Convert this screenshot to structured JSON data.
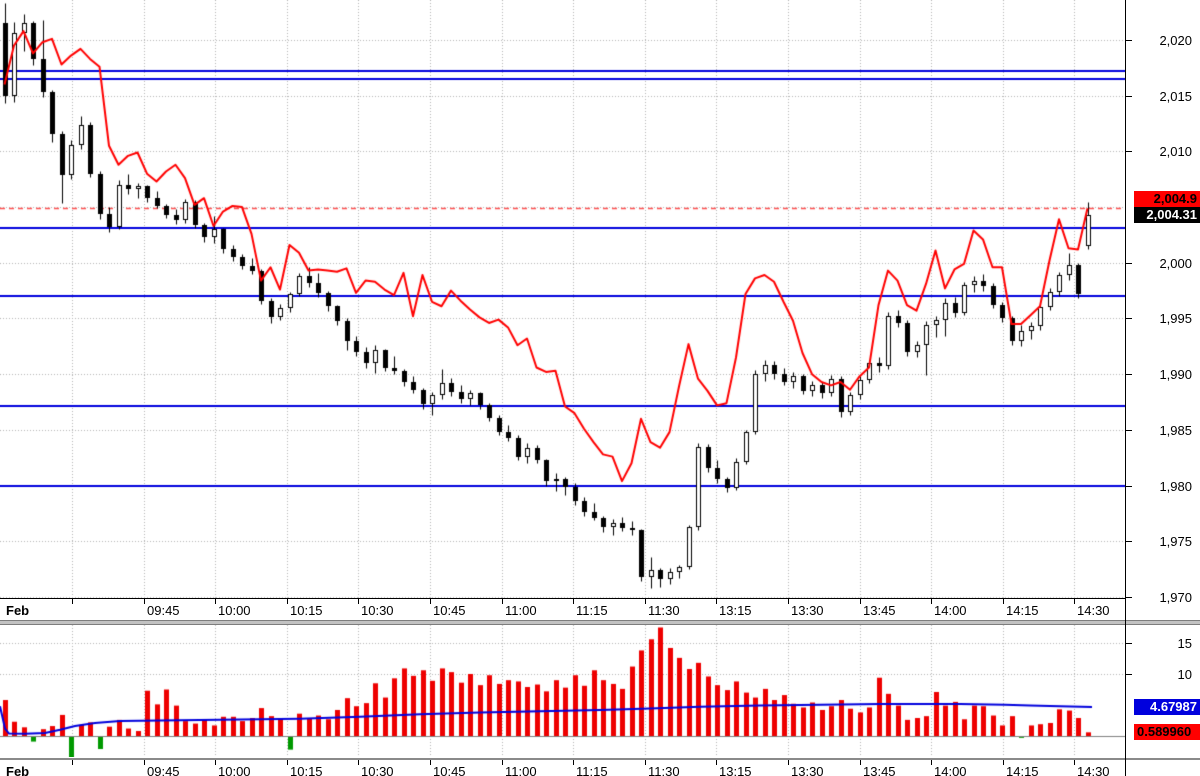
{
  "chart_data": {
    "type": "candlestick",
    "grid": true,
    "legend_position": "none",
    "x_axis": {
      "month_label": "Feb",
      "time_labels": [
        "09:45",
        "10:00",
        "10:15",
        "10:30",
        "10:45",
        "11:00",
        "11:15",
        "11:30",
        "13:15",
        "13:30",
        "13:45",
        "14:00",
        "14:15",
        "14:30"
      ]
    },
    "main_panel": {
      "ylim": [
        1970.0,
        2023.6
      ],
      "price_ticks": [
        {
          "value": 2020,
          "label": "2,020"
        },
        {
          "value": 2015,
          "label": "2,015"
        },
        {
          "value": 2010,
          "label": "2,010"
        },
        {
          "value": 2000,
          "label": "2,000"
        },
        {
          "value": 1995,
          "label": "1,995"
        },
        {
          "value": 1990,
          "label": "1,990"
        },
        {
          "value": 1985,
          "label": "1,985"
        },
        {
          "value": 1980,
          "label": "1,980"
        },
        {
          "value": 1975,
          "label": "1,975"
        },
        {
          "value": 1970,
          "label": "1,970"
        }
      ],
      "grid_levels": [
        2020,
        2015,
        2010,
        2005,
        2000,
        1995,
        1990,
        1985,
        1980,
        1975,
        1970
      ],
      "hlines": [
        2017.2,
        2016.5,
        2003.1,
        1997.0,
        1987.1,
        1980.0
      ],
      "dashed_level": 2004.9,
      "last_close_marker": {
        "value": 2004.31,
        "label": "2,004.31"
      },
      "red_line_marker": {
        "value": 2004.9,
        "label": "2,004.9"
      },
      "candles_ohlc": [
        [
          2021.5,
          2023.3,
          2014.3,
          2015.0
        ],
        [
          2015.0,
          2021.6,
          2014.4,
          2020.6
        ],
        [
          2020.6,
          2022.3,
          2019.0,
          2021.5
        ],
        [
          2021.5,
          2021.7,
          2017.8,
          2018.3
        ],
        [
          2018.3,
          2021.8,
          2014.9,
          2015.3
        ],
        [
          2015.3,
          2015.5,
          2010.8,
          2011.6
        ],
        [
          2011.6,
          2011.8,
          2005.4,
          2007.9
        ],
        [
          2007.9,
          2011.0,
          2007.5,
          2010.6
        ],
        [
          2010.6,
          2013.2,
          2010.2,
          2012.4
        ],
        [
          2012.4,
          2012.6,
          2007.7,
          2008.0
        ],
        [
          2008.0,
          2008.2,
          2003.9,
          2004.4
        ],
        [
          2004.4,
          2005.0,
          2002.8,
          2003.2
        ],
        [
          2003.2,
          2007.4,
          2003.0,
          2007.0
        ],
        [
          2007.0,
          2008.0,
          2006.2,
          2006.6
        ],
        [
          2006.6,
          2007.2,
          2005.8,
          2006.9
        ],
        [
          2006.9,
          2007.0,
          2005.5,
          2005.8
        ],
        [
          2005.8,
          2006.4,
          2004.9,
          2005.1
        ],
        [
          2005.1,
          2005.3,
          2004.0,
          2004.3
        ],
        [
          2004.3,
          2004.8,
          2003.5,
          2003.8
        ],
        [
          2003.8,
          2005.7,
          2003.6,
          2005.5
        ],
        [
          2005.5,
          2005.6,
          2003.1,
          2003.4
        ],
        [
          2003.4,
          2003.6,
          2001.9,
          2002.3
        ],
        [
          2002.3,
          2004.2,
          2001.8,
          2003.0
        ],
        [
          2003.0,
          2003.1,
          2000.9,
          2001.2
        ],
        [
          2001.2,
          2001.6,
          2000.2,
          2000.5
        ],
        [
          2000.5,
          2000.8,
          1999.4,
          1999.7
        ],
        [
          1999.7,
          2000.4,
          1999.0,
          1999.3
        ],
        [
          1999.3,
          1999.4,
          1996.3,
          1996.6
        ],
        [
          1996.6,
          1996.8,
          1994.6,
          1995.1
        ],
        [
          1995.1,
          1996.3,
          1994.9,
          1995.9
        ],
        [
          1995.9,
          1997.4,
          1995.6,
          1997.2
        ],
        [
          1997.2,
          1999.1,
          1997.0,
          1998.8
        ],
        [
          1998.8,
          1999.6,
          1997.8,
          1998.2
        ],
        [
          1998.2,
          1999.1,
          1996.9,
          1997.3
        ],
        [
          1997.3,
          1997.5,
          1995.7,
          1996.1
        ],
        [
          1996.1,
          1996.2,
          1994.4,
          1994.8
        ],
        [
          1994.8,
          1995.0,
          1992.2,
          1993.0
        ],
        [
          1993.0,
          1993.4,
          1991.6,
          1992.0
        ],
        [
          1992.0,
          1992.4,
          1990.6,
          1991.0
        ],
        [
          1991.0,
          1992.6,
          1990.1,
          1992.2
        ],
        [
          1992.2,
          1992.3,
          1990.3,
          1990.6
        ],
        [
          1990.6,
          1991.6,
          1990.0,
          1990.3
        ],
        [
          1990.3,
          1990.5,
          1988.9,
          1989.3
        ],
        [
          1989.3,
          1989.8,
          1988.3,
          1988.6
        ],
        [
          1988.6,
          1988.8,
          1986.9,
          1987.3
        ],
        [
          1987.3,
          1988.4,
          1986.3,
          1988.1
        ],
        [
          1988.1,
          1990.5,
          1987.8,
          1989.2
        ],
        [
          1989.2,
          1989.7,
          1988.0,
          1988.4
        ],
        [
          1988.4,
          1989.0,
          1987.4,
          1987.8
        ],
        [
          1987.8,
          1988.6,
          1987.2,
          1988.3
        ],
        [
          1988.3,
          1988.4,
          1986.9,
          1987.2
        ],
        [
          1987.2,
          1987.4,
          1985.8,
          1986.1
        ],
        [
          1986.1,
          1986.3,
          1984.5,
          1984.8
        ],
        [
          1984.8,
          1985.4,
          1984.0,
          1984.3
        ],
        [
          1984.3,
          1984.5,
          1982.3,
          1982.6
        ],
        [
          1982.6,
          1983.8,
          1982.0,
          1983.4
        ],
        [
          1983.4,
          1983.6,
          1982.0,
          1982.3
        ],
        [
          1982.3,
          1982.4,
          1980.0,
          1980.4
        ],
        [
          1980.4,
          1981.1,
          1979.5,
          1980.6
        ],
        [
          1980.6,
          1980.8,
          1979.2,
          1979.9
        ],
        [
          1979.9,
          1980.2,
          1978.3,
          1978.6
        ],
        [
          1978.6,
          1979.0,
          1977.3,
          1977.6
        ],
        [
          1977.6,
          1978.4,
          1976.9,
          1977.1
        ],
        [
          1977.1,
          1977.3,
          1975.8,
          1976.3
        ],
        [
          1976.3,
          1977.0,
          1975.6,
          1976.6
        ],
        [
          1976.6,
          1977.2,
          1975.9,
          1976.2
        ],
        [
          1976.2,
          1976.8,
          1975.6,
          1976.0
        ],
        [
          1976.0,
          1976.1,
          1971.4,
          1971.8
        ],
        [
          1971.8,
          1973.6,
          1970.8,
          1972.4
        ],
        [
          1972.4,
          1972.6,
          1970.9,
          1971.6
        ],
        [
          1971.6,
          1972.6,
          1971.2,
          1972.2
        ],
        [
          1972.2,
          1972.9,
          1971.7,
          1972.7
        ],
        [
          1972.7,
          1976.5,
          1972.5,
          1976.3
        ],
        [
          1976.3,
          1983.8,
          1976.0,
          1983.5
        ],
        [
          1983.5,
          1983.7,
          1981.2,
          1981.6
        ],
        [
          1981.6,
          1982.3,
          1980.2,
          1980.6
        ],
        [
          1980.6,
          1980.8,
          1979.4,
          1979.8
        ],
        [
          1979.8,
          1982.5,
          1979.6,
          1982.1
        ],
        [
          1982.1,
          1985.0,
          1981.9,
          1984.8
        ],
        [
          1984.8,
          1990.4,
          1984.6,
          1990.0
        ],
        [
          1990.0,
          1991.3,
          1989.4,
          1990.8
        ],
        [
          1990.8,
          1991.2,
          1989.6,
          1990.0
        ],
        [
          1990.0,
          1990.6,
          1989.0,
          1989.3
        ],
        [
          1989.3,
          1990.2,
          1988.8,
          1989.8
        ],
        [
          1989.8,
          1990.0,
          1988.2,
          1988.5
        ],
        [
          1988.5,
          1989.4,
          1988.0,
          1989.0
        ],
        [
          1989.0,
          1989.3,
          1987.9,
          1988.3
        ],
        [
          1988.3,
          1989.9,
          1988.0,
          1989.6
        ],
        [
          1989.6,
          1989.8,
          1986.2,
          1986.6
        ],
        [
          1986.6,
          1988.4,
          1986.3,
          1988.1
        ],
        [
          1988.1,
          1989.8,
          1987.8,
          1989.5
        ],
        [
          1989.5,
          1991.3,
          1989.2,
          1991.0
        ],
        [
          1991.0,
          1991.5,
          1990.2,
          1990.7
        ],
        [
          1990.7,
          1995.6,
          1990.5,
          1995.2
        ],
        [
          1995.2,
          1995.8,
          1994.2,
          1994.6
        ],
        [
          1994.6,
          1994.9,
          1991.6,
          1992.0
        ],
        [
          1992.0,
          1993.0,
          1991.5,
          1992.6
        ],
        [
          1992.6,
          1994.8,
          1989.9,
          1994.4
        ],
        [
          1994.4,
          1995.2,
          1993.3,
          1994.9
        ],
        [
          1994.9,
          1996.8,
          1993.4,
          1996.4
        ],
        [
          1996.4,
          1996.9,
          1995.1,
          1995.5
        ],
        [
          1995.5,
          1998.3,
          1995.3,
          1998.0
        ],
        [
          1998.0,
          1998.8,
          1997.4,
          1998.4
        ],
        [
          1998.4,
          1999.0,
          1997.5,
          1997.9
        ],
        [
          1997.9,
          1998.2,
          1995.9,
          1996.2
        ],
        [
          1996.2,
          1996.5,
          1994.7,
          1995.0
        ],
        [
          1995.0,
          1995.2,
          1992.6,
          1993.0
        ],
        [
          1993.0,
          1994.4,
          1992.5,
          1993.9
        ],
        [
          1993.9,
          1994.7,
          1993.2,
          1994.3
        ],
        [
          1994.3,
          1996.3,
          1994.0,
          1996.0
        ],
        [
          1996.0,
          1997.7,
          1995.8,
          1997.4
        ],
        [
          1997.4,
          1999.2,
          1997.0,
          1998.9
        ],
        [
          1998.9,
          2000.9,
          1998.5,
          1999.8
        ],
        [
          1999.8,
          2000.0,
          1996.8,
          1997.2
        ],
        [
          2001.5,
          2005.5,
          2001.2,
          2004.31
        ]
      ],
      "red_line": [
        2016.0,
        2019.5,
        2020.8,
        2018.8,
        2019.8,
        2020.1,
        2017.8,
        2018.6,
        2019.2,
        2018.3,
        2017.6,
        2010.5,
        2008.8,
        2009.6,
        2009.9,
        2008.0,
        2007.3,
        2008.2,
        2008.8,
        2007.6,
        2005.2,
        2005.8,
        2003.3,
        2004.6,
        2005.1,
        2005.0,
        2002.6,
        1998.4,
        1999.6,
        1997.6,
        2001.6,
        2000.9,
        1999.3,
        1999.4,
        1999.3,
        1999.2,
        1999.5,
        1997.3,
        1998.4,
        1998.3,
        1997.6,
        1997.1,
        1999.1,
        1995.2,
        1998.9,
        1996.5,
        1996.1,
        1997.5,
        1996.6,
        1995.8,
        1995.1,
        1994.6,
        1994.9,
        1994.2,
        1992.6,
        1993.2,
        1990.6,
        1990.2,
        1990.3,
        1987.1,
        1986.5,
        1985.1,
        1983.9,
        1982.8,
        1982.6,
        1980.4,
        1982.0,
        1986.0,
        1983.9,
        1983.4,
        1984.8,
        1988.9,
        1992.7,
        1989.6,
        1988.5,
        1987.2,
        1987.4,
        1991.5,
        1997.2,
        1998.6,
        1998.9,
        1998.3,
        1996.5,
        1994.8,
        1991.9,
        1990.0,
        1989.3,
        1989.0,
        1989.3,
        1988.6,
        1989.8,
        1990.6,
        1996.2,
        1999.3,
        1998.4,
        1996.2,
        1995.7,
        1998.1,
        2001.1,
        1997.7,
        1999.4,
        1999.9,
        2002.9,
        2002.1,
        1999.6,
        1999.6,
        1994.5,
        1994.5,
        1995.3,
        1996.1,
        2000.2,
        2003.9,
        2001.3,
        2001.2,
        2004.9
      ]
    },
    "volume_panel": {
      "ylim": [
        -3.4,
        17.7
      ],
      "ticks": [
        {
          "value": 15,
          "label": "15"
        },
        {
          "value": 10,
          "label": "10"
        }
      ],
      "bars": [
        5.8,
        2.3,
        1.4,
        -0.9,
        1.1,
        1.6,
        3.4,
        -3.4,
        1.8,
        2.2,
        -2.1,
        1.5,
        2.6,
        1.2,
        0.8,
        7.3,
        5.1,
        7.5,
        4.9,
        2.4,
        2.0,
        2.7,
        1.7,
        3.1,
        3.1,
        2.4,
        2.9,
        4.5,
        3.2,
        2.8,
        -2.2,
        3.6,
        2.9,
        3.3,
        2.7,
        4.2,
        6.1,
        4.8,
        5.3,
        8.5,
        6.2,
        9.3,
        10.9,
        9.7,
        10.6,
        8.9,
        10.9,
        10.3,
        8.6,
        10.0,
        8.2,
        9.8,
        8.4,
        9.0,
        8.8,
        7.9,
        8.3,
        7.2,
        9.0,
        7.8,
        9.8,
        8.1,
        10.6,
        9.0,
        8.4,
        7.6,
        11.2,
        13.8,
        15.6,
        17.5,
        14.2,
        12.6,
        10.8,
        11.8,
        9.6,
        8.2,
        7.4,
        8.8,
        7.0,
        6.2,
        7.6,
        5.8,
        6.6,
        5.2,
        4.6,
        5.4,
        4.2,
        4.8,
        5.8,
        4.4,
        3.8,
        4.6,
        9.4,
        6.8,
        4.9,
        2.6,
        2.9,
        3.2,
        7.1,
        4.9,
        5.5,
        2.7,
        4.9,
        4.8,
        3.3,
        1.7,
        3.2,
        -0.3,
        1.7,
        1.9,
        2.1,
        4.3,
        4.1,
        2.9,
        0.59
      ],
      "avg_line_waypoints": [
        [
          0,
          4.8
        ],
        [
          5,
          1.2
        ],
        [
          9,
          0.4
        ],
        [
          25,
          0.35
        ],
        [
          45,
          0.5
        ],
        [
          60,
          1.0
        ],
        [
          75,
          1.6
        ],
        [
          95,
          2.1
        ],
        [
          120,
          2.4
        ],
        [
          200,
          2.6
        ],
        [
          300,
          2.8
        ],
        [
          360,
          3.1
        ],
        [
          420,
          3.5
        ],
        [
          480,
          3.8
        ],
        [
          540,
          4.0
        ],
        [
          600,
          4.2
        ],
        [
          650,
          4.45
        ],
        [
          700,
          4.7
        ],
        [
          760,
          4.9
        ],
        [
          820,
          5.05
        ],
        [
          880,
          5.15
        ],
        [
          960,
          5.15
        ],
        [
          1005,
          5.05
        ],
        [
          1030,
          4.9
        ],
        [
          1060,
          4.78
        ],
        [
          1092,
          4.68
        ]
      ],
      "avg_marker": {
        "value": 4.67987,
        "label": "4.67987"
      },
      "last_bar_marker": {
        "value": 0.58996,
        "label": "0.589960"
      }
    }
  },
  "colors": {
    "up_candle_fill": "#ffffff",
    "down_candle_fill": "#000000",
    "candle_stroke": "#000000",
    "price_line": "#ff0000",
    "hline_blue": "#0000dd",
    "dashed_red": "#ff5050",
    "grid": "#b4b4b4",
    "vol_bar_up": "#ee0000",
    "vol_bar_down": "#009900",
    "vol_avg_line": "#0000dd",
    "badge_red_bg": "#ff0000",
    "badge_black_bg": "#000000",
    "badge_blue_bg": "#0000dd",
    "axis_text": "#000000"
  }
}
